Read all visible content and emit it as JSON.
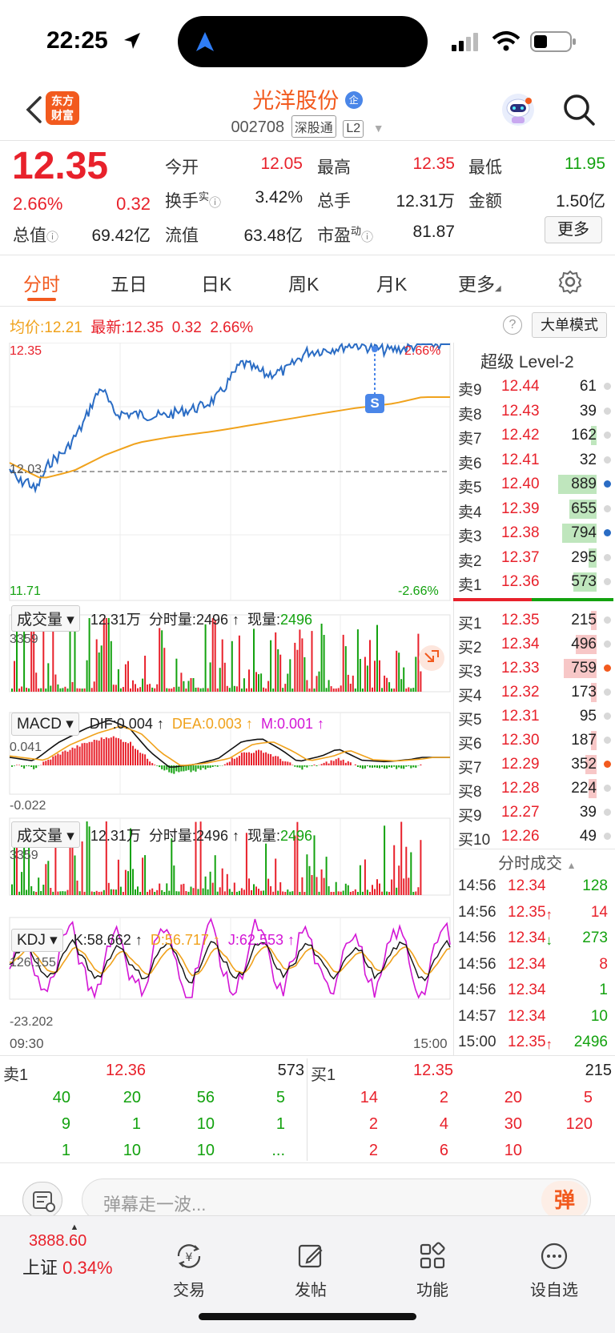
{
  "status": {
    "time": "22:25"
  },
  "header": {
    "logo_line1": "东方",
    "logo_line2": "财富",
    "stock_name": "光洋股份",
    "name_badge": "企",
    "stock_code": "002708",
    "tag1": "深股通",
    "tag2": "L2"
  },
  "quote": {
    "price": "12.35",
    "change_pct": "2.66%",
    "change": "0.32",
    "open_label": "今开",
    "open": "12.05",
    "high_label": "最高",
    "high": "12.35",
    "low_label": "最低",
    "low": "11.95",
    "turnover_label": "换手",
    "turnover_sup": "实",
    "turnover": "3.42%",
    "volume_label": "总手",
    "volume": "12.31万",
    "amount_label": "金额",
    "amount": "1.50亿",
    "mcap_label": "总值",
    "mcap": "69.42亿",
    "float_label": "流值",
    "float": "63.48亿",
    "pe_label": "市盈",
    "pe_sup": "动",
    "pe": "81.87",
    "more_label": "更多"
  },
  "tabs": [
    "分时",
    "五日",
    "日K",
    "周K",
    "月K",
    "更多"
  ],
  "info": {
    "avg_label": "均价:",
    "avg": "12.21",
    "latest_label": "最新:",
    "latest": "12.35",
    "latest_chg": "0.32",
    "latest_pct": "2.66%",
    "bigorder_label": "大单模式",
    "price_high": "12.35",
    "price_low": "11.71",
    "pct_high": "2.66%",
    "pct_low": "-2.66%",
    "prev_close": "12.03",
    "s_marker": "S"
  },
  "vol1": {
    "dropdown": "成交量",
    "total": "12.31万",
    "period_label": "分时量:",
    "period": "2496",
    "now_label": "现量:",
    "now": "2496",
    "max": "3359"
  },
  "macd": {
    "dropdown": "MACD",
    "dif": "DIF:0.004",
    "dea": "DEA:0.003",
    "m": "M:0.001",
    "max": "0.041",
    "min": "-0.022"
  },
  "vol2": {
    "dropdown": "成交量",
    "total": "12.31万",
    "period_label": "分时量:",
    "period": "2496",
    "now_label": "现量:",
    "now": "2496",
    "max": "3359"
  },
  "kdj": {
    "dropdown": "KDJ",
    "k": "K:58.662",
    "d": "D:56.717",
    "j": "J:62.553",
    "max": "126.155",
    "min": "-23.202"
  },
  "time_axis": {
    "start": "09:30",
    "end": "15:00"
  },
  "orderbook": {
    "title": "超级 Level-2",
    "asks": [
      {
        "label": "卖9",
        "price": "12.44",
        "vol": "61",
        "bar": 0,
        "dot": ""
      },
      {
        "label": "卖8",
        "price": "12.43",
        "vol": "39",
        "bar": 0,
        "dot": ""
      },
      {
        "label": "卖7",
        "price": "12.42",
        "vol": "162",
        "bar": 0.15,
        "dot": ""
      },
      {
        "label": "卖6",
        "price": "12.41",
        "vol": "32",
        "bar": 0,
        "dot": ""
      },
      {
        "label": "卖5",
        "price": "12.40",
        "vol": "889",
        "bar": 1,
        "dot": "#2a6cc4"
      },
      {
        "label": "卖4",
        "price": "12.39",
        "vol": "655",
        "bar": 0.7,
        "dot": ""
      },
      {
        "label": "卖3",
        "price": "12.38",
        "vol": "794",
        "bar": 0.9,
        "dot": "#2a6cc4"
      },
      {
        "label": "卖2",
        "price": "12.37",
        "vol": "295",
        "bar": 0.2,
        "dot": ""
      },
      {
        "label": "卖1",
        "price": "12.36",
        "vol": "573",
        "bar": 0.6,
        "dot": ""
      }
    ],
    "bids": [
      {
        "label": "买1",
        "price": "12.35",
        "vol": "215",
        "bar": 0.15,
        "dot": ""
      },
      {
        "label": "买2",
        "price": "12.34",
        "vol": "496",
        "bar": 0.55,
        "dot": ""
      },
      {
        "label": "买3",
        "price": "12.33",
        "vol": "759",
        "bar": 0.85,
        "dot": "#f25a1e"
      },
      {
        "label": "买4",
        "price": "12.32",
        "vol": "173",
        "bar": 0.15,
        "dot": ""
      },
      {
        "label": "买5",
        "price": "12.31",
        "vol": "95",
        "bar": 0,
        "dot": ""
      },
      {
        "label": "买6",
        "price": "12.30",
        "vol": "187",
        "bar": 0.15,
        "dot": ""
      },
      {
        "label": "买7",
        "price": "12.29",
        "vol": "352",
        "bar": 0.3,
        "dot": "#f25a1e"
      },
      {
        "label": "买8",
        "price": "12.28",
        "vol": "224",
        "bar": 0.2,
        "dot": ""
      },
      {
        "label": "买9",
        "price": "12.27",
        "vol": "39",
        "bar": 0,
        "dot": ""
      },
      {
        "label": "买10",
        "price": "12.26",
        "vol": "49",
        "bar": 0,
        "dot": ""
      }
    ],
    "trades_title": "分时成交",
    "trades": [
      {
        "time": "14:56",
        "price": "12.34",
        "arrow": "",
        "vol": "128",
        "pcolor": "red",
        "vcolor": "green"
      },
      {
        "time": "14:56",
        "price": "12.35",
        "arrow": "↑",
        "vol": "14",
        "pcolor": "red",
        "vcolor": "red"
      },
      {
        "time": "14:56",
        "price": "12.34",
        "arrow": "↓",
        "vol": "273",
        "pcolor": "red",
        "vcolor": "green"
      },
      {
        "time": "14:56",
        "price": "12.34",
        "arrow": "",
        "vol": "8",
        "pcolor": "red",
        "vcolor": "red"
      },
      {
        "time": "14:56",
        "price": "12.34",
        "arrow": "",
        "vol": "1",
        "pcolor": "red",
        "vcolor": "green"
      },
      {
        "time": "14:57",
        "price": "12.34",
        "arrow": "",
        "vol": "10",
        "pcolor": "red",
        "vcolor": "green"
      },
      {
        "time": "15:00",
        "price": "12.35",
        "arrow": "↑",
        "vol": "2496",
        "pcolor": "red",
        "vcolor": "green"
      }
    ]
  },
  "queue": {
    "sell_label": "卖1",
    "sell_price": "12.36",
    "sell_vol": "573",
    "buy_label": "买1",
    "buy_price": "12.35",
    "buy_vol": "215",
    "sell_rows": [
      [
        "40",
        "20",
        "56",
        "5"
      ],
      [
        "9",
        "1",
        "10",
        "1"
      ],
      [
        "1",
        "10",
        "10",
        "..."
      ]
    ],
    "buy_rows": [
      [
        "14",
        "2",
        "20",
        "5"
      ],
      [
        "2",
        "4",
        "30",
        "120"
      ],
      [
        "2",
        "6",
        "10",
        ""
      ]
    ]
  },
  "chat": {
    "placeholder": "弹幕走一波...",
    "button": "弹"
  },
  "nav": {
    "index_value": "3888.60",
    "index_name": "上证",
    "index_pct": "0.34%",
    "trade": "交易",
    "post": "发帖",
    "func": "功能",
    "watch": "设自选"
  },
  "colors": {
    "up": "#e8212b",
    "down": "#13a20f",
    "accent": "#f25a1e",
    "price_line": "#2a6cc4",
    "avg_line": "#f0a21c"
  }
}
